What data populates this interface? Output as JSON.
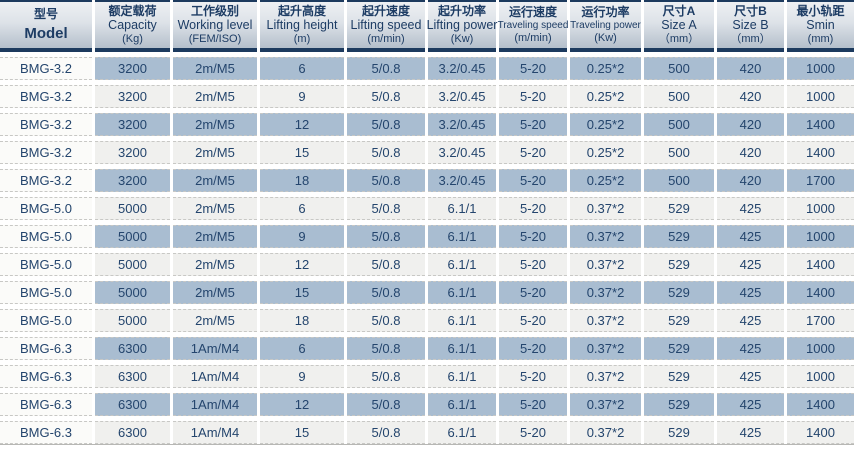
{
  "table": {
    "columns": [
      {
        "zh": "型号",
        "en": "Model",
        "unit": ""
      },
      {
        "zh": "额定载荷",
        "en": "Capacity",
        "unit": "(Kg)"
      },
      {
        "zh": "工作级别",
        "en": "Working level",
        "unit": "(FEM/ISO)"
      },
      {
        "zh": "起升高度",
        "en": "Lifting height",
        "unit": "(m)"
      },
      {
        "zh": "起升速度",
        "en": "Lifting speed",
        "unit": "(m/min)"
      },
      {
        "zh": "起升功率",
        "en": "Lifting power",
        "unit": "(Kw)"
      },
      {
        "zh": "运行速度",
        "en": "Traveling speed",
        "unit": "(m/min)"
      },
      {
        "zh": "运行功率",
        "en": "Traveling power",
        "unit": "(Kw)"
      },
      {
        "zh": "尺寸A",
        "en": "Size A",
        "unit": "（mm）"
      },
      {
        "zh": "尺寸B",
        "en": "Size B",
        "unit": "（mm）"
      },
      {
        "zh": "最小轨距",
        "en": "Smin",
        "unit": "(mm)"
      }
    ],
    "rows": [
      [
        "BMG-3.2",
        "3200",
        "2m/M5",
        "6",
        "5/0.8",
        "3.2/0.45",
        "5-20",
        "0.25*2",
        "500",
        "420",
        "1000"
      ],
      [
        "BMG-3.2",
        "3200",
        "2m/M5",
        "9",
        "5/0.8",
        "3.2/0.45",
        "5-20",
        "0.25*2",
        "500",
        "420",
        "1000"
      ],
      [
        "BMG-3.2",
        "3200",
        "2m/M5",
        "12",
        "5/0.8",
        "3.2/0.45",
        "5-20",
        "0.25*2",
        "500",
        "420",
        "1400"
      ],
      [
        "BMG-3.2",
        "3200",
        "2m/M5",
        "15",
        "5/0.8",
        "3.2/0.45",
        "5-20",
        "0.25*2",
        "500",
        "420",
        "1400"
      ],
      [
        "BMG-3.2",
        "3200",
        "2m/M5",
        "18",
        "5/0.8",
        "3.2/0.45",
        "5-20",
        "0.25*2",
        "500",
        "420",
        "1700"
      ],
      [
        "BMG-5.0",
        "5000",
        "2m/M5",
        "6",
        "5/0.8",
        "6.1/1",
        "5-20",
        "0.37*2",
        "529",
        "425",
        "1000"
      ],
      [
        "BMG-5.0",
        "5000",
        "2m/M5",
        "9",
        "5/0.8",
        "6.1/1",
        "5-20",
        "0.37*2",
        "529",
        "425",
        "1000"
      ],
      [
        "BMG-5.0",
        "5000",
        "2m/M5",
        "12",
        "5/0.8",
        "6.1/1",
        "5-20",
        "0.37*2",
        "529",
        "425",
        "1400"
      ],
      [
        "BMG-5.0",
        "5000",
        "2m/M5",
        "15",
        "5/0.8",
        "6.1/1",
        "5-20",
        "0.37*2",
        "529",
        "425",
        "1400"
      ],
      [
        "BMG-5.0",
        "5000",
        "2m/M5",
        "18",
        "5/0.8",
        "6.1/1",
        "5-20",
        "0.37*2",
        "529",
        "425",
        "1700"
      ],
      [
        "BMG-6.3",
        "6300",
        "1Am/M4",
        "6",
        "5/0.8",
        "6.1/1",
        "5-20",
        "0.37*2",
        "529",
        "425",
        "1000"
      ],
      [
        "BMG-6.3",
        "6300",
        "1Am/M4",
        "9",
        "5/0.8",
        "6.1/1",
        "5-20",
        "0.37*2",
        "529",
        "425",
        "1000"
      ],
      [
        "BMG-6.3",
        "6300",
        "1Am/M4",
        "12",
        "5/0.8",
        "6.1/1",
        "5-20",
        "0.37*2",
        "529",
        "425",
        "1400"
      ],
      [
        "BMG-6.3",
        "6300",
        "1Am/M4",
        "15",
        "5/0.8",
        "6.1/1",
        "5-20",
        "0.37*2",
        "529",
        "425",
        "1400"
      ]
    ],
    "row_styles": [
      "blue",
      "light",
      "blue",
      "light",
      "blue",
      "light",
      "blue",
      "light",
      "blue",
      "light",
      "blue",
      "light",
      "blue",
      "light"
    ]
  },
  "colors": {
    "header_border_navy": "#1c3a5e",
    "header_text": "#1d3c64",
    "header_gradient_top": "#eef0f3",
    "header_gradient_bottom": "#b4bfcb",
    "row_blue": "#a9bdd1",
    "row_light": "#f0f0ee",
    "first_column_bg": "#fbfbf9",
    "cell_text": "#24456d",
    "dashed_divider": "#c8c8c5"
  }
}
